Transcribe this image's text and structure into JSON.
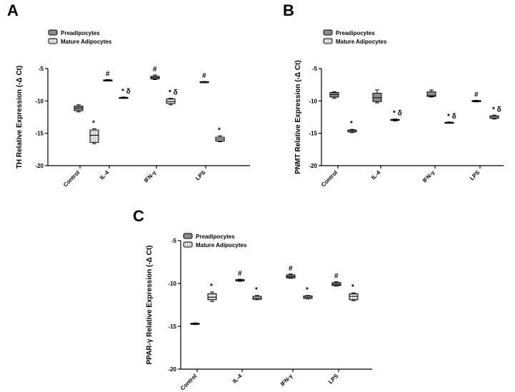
{
  "chart_data": [
    {
      "type": "box",
      "panel": "A",
      "ylabel": "TH Relative Expression (-Δ Ct)",
      "ylim": [
        -20,
        -5
      ],
      "yticks": [
        -5,
        -10,
        -15,
        -20
      ],
      "categories": [
        "Control",
        "IL-4",
        "IFN-γ",
        "LPS"
      ],
      "legend": [
        "Preadipocytes",
        "Mature Adipocytes"
      ],
      "series": [
        {
          "name": "Preadipocytes",
          "boxes": [
            {
              "min": -11.7,
              "q1": -11.5,
              "med": -11.1,
              "q3": -10.8,
              "max": -10.6
            },
            {
              "min": -6.9,
              "q1": -6.85,
              "med": -6.8,
              "q3": -6.75,
              "max": -6.7
            },
            {
              "min": -6.7,
              "q1": -6.6,
              "med": -6.4,
              "q3": -6.2,
              "max": -6.0
            },
            {
              "min": -7.15,
              "q1": -7.1,
              "med": -7.07,
              "q3": -7.03,
              "max": -7.0
            }
          ]
        },
        {
          "name": "Mature Adipocytes",
          "boxes": [
            {
              "min": -16.6,
              "q1": -16.4,
              "med": -15.3,
              "q3": -14.5,
              "max": -14.3
            },
            {
              "min": -9.6,
              "q1": -9.55,
              "med": -9.5,
              "q3": -9.45,
              "max": -9.4
            },
            {
              "min": -10.6,
              "q1": -10.4,
              "med": -10.1,
              "q3": -9.7,
              "max": -9.6
            },
            {
              "min": -16.3,
              "q1": -16.2,
              "med": -15.9,
              "q3": -15.6,
              "max": -15.4
            }
          ]
        }
      ],
      "annotations": [
        {
          "cat": 0,
          "series": 1,
          "text": "*"
        },
        {
          "cat": 1,
          "series": 0,
          "text": "#"
        },
        {
          "cat": 1,
          "series": 1,
          "text": "* δ"
        },
        {
          "cat": 2,
          "series": 0,
          "text": "#"
        },
        {
          "cat": 2,
          "series": 1,
          "text": "* δ"
        },
        {
          "cat": 3,
          "series": 0,
          "text": "#"
        },
        {
          "cat": 3,
          "series": 1,
          "text": "*"
        }
      ]
    },
    {
      "type": "box",
      "panel": "B",
      "ylabel": "PNMT Relative Expression (-Δ Ct)",
      "ylim": [
        -20,
        -5
      ],
      "yticks": [
        -5,
        -10,
        -15,
        -20
      ],
      "categories": [
        "Control",
        "IL-4",
        "IFN-γ",
        "LPS"
      ],
      "legend": [
        "Preadipocytes",
        "Mature Adipocytes"
      ],
      "series": [
        {
          "name": "Preadipocytes",
          "boxes": [
            {
              "min": -9.6,
              "q1": -9.4,
              "med": -9.0,
              "q3": -8.7,
              "max": -8.6
            },
            {
              "min": -10.3,
              "q1": -10.1,
              "med": -9.5,
              "q3": -8.8,
              "max": -8.3
            },
            {
              "min": -9.4,
              "q1": -9.3,
              "med": -9.2,
              "q3": -8.6,
              "max": -8.3
            },
            {
              "min": -10.15,
              "q1": -10.1,
              "med": -10.0,
              "q3": -9.95,
              "max": -9.9
            }
          ]
        },
        {
          "name": "Mature Adipocytes",
          "boxes": [
            {
              "min": -14.9,
              "q1": -14.8,
              "med": -14.6,
              "q3": -14.5,
              "max": -14.4
            },
            {
              "min": -13.1,
              "q1": -13.0,
              "med": -12.95,
              "q3": -12.85,
              "max": -12.8
            },
            {
              "min": -13.45,
              "q1": -13.4,
              "med": -13.35,
              "q3": -13.3,
              "max": -13.25
            },
            {
              "min": -12.8,
              "q1": -12.7,
              "med": -12.5,
              "q3": -12.3,
              "max": -12.2
            }
          ]
        }
      ],
      "annotations": [
        {
          "cat": 0,
          "series": 1,
          "text": "*"
        },
        {
          "cat": 1,
          "series": 1,
          "text": "* δ"
        },
        {
          "cat": 2,
          "series": 1,
          "text": "* δ"
        },
        {
          "cat": 3,
          "series": 0,
          "text": "#"
        },
        {
          "cat": 3,
          "series": 1,
          "text": "* δ"
        }
      ]
    },
    {
      "type": "box",
      "panel": "C",
      "ylabel": "PPAR-γ Relative Expression (-Δ Ct)",
      "ylim": [
        -20,
        -5
      ],
      "yticks": [
        -5,
        -10,
        -15,
        -20
      ],
      "categories": [
        "Control",
        "IL-4",
        "IFN-γ",
        "LPS"
      ],
      "legend": [
        "Preadipocytes",
        "Mature Adipocytes"
      ],
      "series": [
        {
          "name": "Preadipocytes",
          "boxes": [
            {
              "min": -14.8,
              "q1": -14.75,
              "med": -14.7,
              "q3": -14.65,
              "max": -14.6
            },
            {
              "min": -9.75,
              "q1": -9.7,
              "med": -9.65,
              "q3": -9.55,
              "max": -9.5
            },
            {
              "min": -9.4,
              "q1": -9.35,
              "med": -9.2,
              "q3": -9.0,
              "max": -8.9
            },
            {
              "min": -10.3,
              "q1": -10.25,
              "med": -10.1,
              "q3": -9.9,
              "max": -9.8
            }
          ]
        },
        {
          "name": "Mature Adipocytes",
          "boxes": [
            {
              "min": -12.1,
              "q1": -11.9,
              "med": -11.6,
              "q3": -11.2,
              "max": -11.0
            },
            {
              "min": -11.9,
              "q1": -11.85,
              "med": -11.7,
              "q3": -11.5,
              "max": -11.4
            },
            {
              "min": -11.8,
              "q1": -11.75,
              "med": -11.6,
              "q3": -11.45,
              "max": -11.4
            },
            {
              "min": -12.0,
              "q1": -11.9,
              "med": -11.5,
              "q3": -11.2,
              "max": -11.1
            }
          ]
        }
      ],
      "annotations": [
        {
          "cat": 0,
          "series": 1,
          "text": "*"
        },
        {
          "cat": 1,
          "series": 0,
          "text": "#"
        },
        {
          "cat": 1,
          "series": 1,
          "text": "*"
        },
        {
          "cat": 2,
          "series": 0,
          "text": "#"
        },
        {
          "cat": 2,
          "series": 1,
          "text": "*"
        },
        {
          "cat": 3,
          "series": 0,
          "text": "#"
        },
        {
          "cat": 3,
          "series": 1,
          "text": "*"
        }
      ]
    }
  ]
}
